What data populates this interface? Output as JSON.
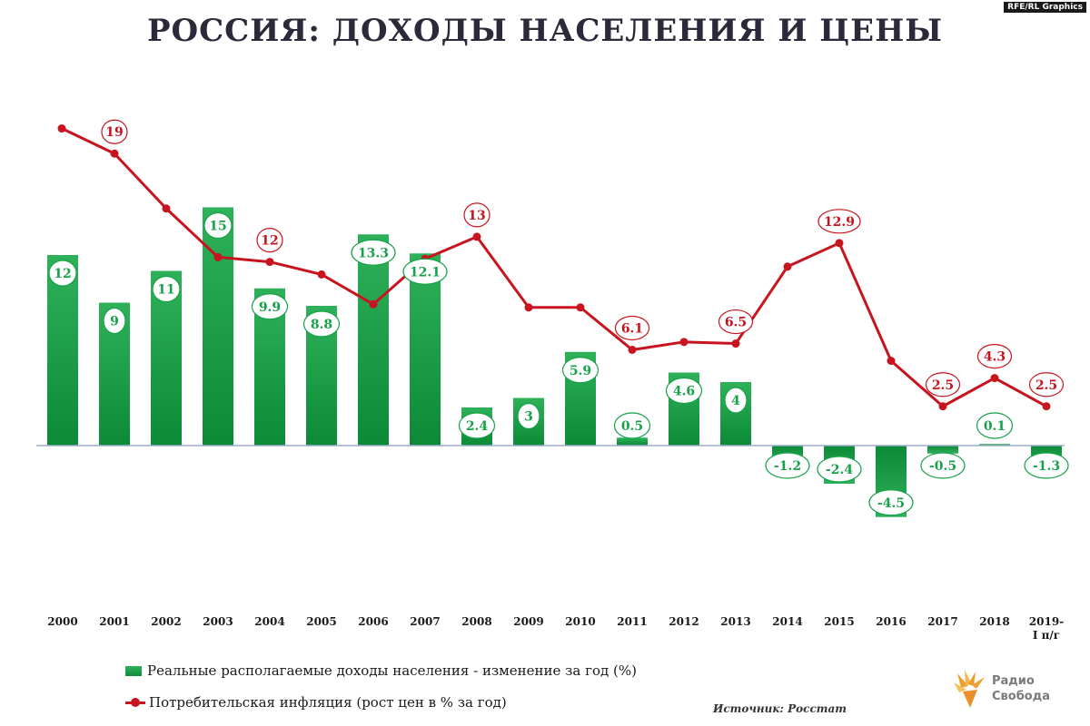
{
  "credit": "RFE/RL Graphics",
  "source": "Источник: Росстат",
  "logo": {
    "line1": "Радио",
    "line2": "Свобода"
  },
  "colors": {
    "bar": "#17a24a",
    "line": "#c8141e",
    "bar_label": "#17a24a",
    "line_label": "#c8141e"
  },
  "chart_data": {
    "type": "bar",
    "title": "РОССИЯ: ДОХОДЫ НАСЕЛЕНИЯ И ЦЕНЫ",
    "categories": [
      "2000",
      "2001",
      "2002",
      "2003",
      "2004",
      "2005",
      "2006",
      "2007",
      "2008",
      "2009",
      "2010",
      "2011",
      "2012",
      "2013",
      "2014",
      "2015",
      "2016",
      "2017",
      "2018",
      "2019-\nI п/г"
    ],
    "series": [
      {
        "name": "Реальные располагаемые доходы населения - изменение за год (%)",
        "type": "bar",
        "values": [
          12,
          9,
          11,
          15,
          9.9,
          8.8,
          13.3,
          12.1,
          2.4,
          3,
          5.9,
          0.5,
          4.6,
          4,
          -1.2,
          -2.4,
          -4.5,
          -0.5,
          0.1,
          -1.3
        ],
        "labels": [
          "12",
          "9",
          "11",
          "15",
          "9.9",
          "8.8",
          "13.3",
          "12.1",
          "2.4",
          "3",
          "5.9",
          "0.5",
          "4.6",
          "4",
          "-1.2",
          "-2.4",
          "-4.5",
          "-0.5",
          "0.1",
          "-1.3"
        ]
      },
      {
        "name": "Потребительская инфляция (рост цен в % за год)",
        "type": "line",
        "values": [
          20.2,
          18.6,
          15.1,
          12.0,
          11.7,
          10.9,
          9.0,
          11.9,
          13.3,
          8.8,
          8.8,
          6.1,
          6.6,
          6.5,
          11.4,
          12.9,
          5.4,
          2.5,
          4.3,
          2.5
        ],
        "labels": [
          "",
          "19",
          "",
          "",
          "12",
          "",
          "",
          "",
          "13",
          "",
          "",
          "6.1",
          "",
          "6.5",
          "",
          "12.9",
          "",
          "2.5",
          "4.3",
          "2.5"
        ]
      }
    ],
    "legend_position": "bottom-left",
    "grid": false
  }
}
